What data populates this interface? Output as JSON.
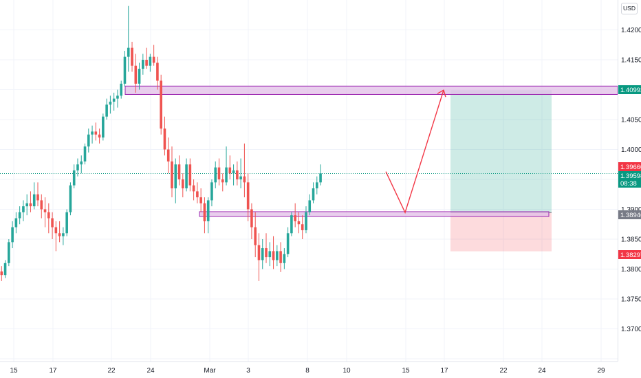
{
  "currency": "USD",
  "price_scale": {
    "ticks": [
      "1.42000",
      "1.41500",
      "1.41000",
      "1.40500",
      "1.40000",
      "1.39500",
      "1.39000",
      "1.38500",
      "1.38000",
      "1.37500",
      "1.37000"
    ],
    "tags": [
      {
        "label": "1.40992",
        "color": "#089981"
      },
      {
        "label": "1.39660",
        "color": "#f23645"
      },
      {
        "label": "1.39598",
        "countdown": "08:38",
        "color": "#089981"
      },
      {
        "label": "1.38946",
        "color": "#787b86"
      },
      {
        "label": "1.38297",
        "color": "#f23645"
      }
    ]
  },
  "time_scale": {
    "labels": [
      "15",
      "17",
      "22",
      "24",
      "Mar",
      "3",
      "8",
      "10",
      "15",
      "17",
      "22",
      "24",
      "29"
    ]
  },
  "chart_data": {
    "type": "candlestick",
    "ylim": [
      1.365,
      1.425
    ],
    "last_price": 1.39598,
    "previous_close": 1.3966,
    "candles": [
      [
        1.3796,
        1.3805,
        1.378,
        1.379
      ],
      [
        1.379,
        1.3815,
        1.3785,
        1.381
      ],
      [
        1.381,
        1.385,
        1.3805,
        1.3845
      ],
      [
        1.3845,
        1.388,
        1.3835,
        1.387
      ],
      [
        1.387,
        1.3895,
        1.386,
        1.3885
      ],
      [
        1.3885,
        1.3905,
        1.3875,
        1.3895
      ],
      [
        1.3895,
        1.3915,
        1.388,
        1.3905
      ],
      [
        1.3905,
        1.3925,
        1.389,
        1.391
      ],
      [
        1.391,
        1.393,
        1.3895,
        1.3905
      ],
      [
        1.3905,
        1.3945,
        1.39,
        1.3925
      ],
      [
        1.3925,
        1.3945,
        1.3905,
        1.3915
      ],
      [
        1.3915,
        1.3925,
        1.3885,
        1.39
      ],
      [
        1.39,
        1.392,
        1.387,
        1.3895
      ],
      [
        1.3895,
        1.391,
        1.386,
        1.3885
      ],
      [
        1.3885,
        1.3895,
        1.385,
        1.387
      ],
      [
        1.387,
        1.388,
        1.383,
        1.386
      ],
      [
        1.386,
        1.388,
        1.3845,
        1.3855
      ],
      [
        1.3855,
        1.387,
        1.384,
        1.386
      ],
      [
        1.386,
        1.39,
        1.3855,
        1.3895
      ],
      [
        1.3895,
        1.3945,
        1.389,
        1.394
      ],
      [
        1.394,
        1.3975,
        1.3935,
        1.3965
      ],
      [
        1.3965,
        1.3985,
        1.3955,
        1.3975
      ],
      [
        1.3975,
        1.399,
        1.396,
        1.398
      ],
      [
        1.398,
        1.401,
        1.3975,
        1.4005
      ],
      [
        1.4005,
        1.4035,
        1.3995,
        1.4025
      ],
      [
        1.4025,
        1.404,
        1.401,
        1.403
      ],
      [
        1.403,
        1.4045,
        1.4015,
        1.4025
      ],
      [
        1.4025,
        1.4035,
        1.401,
        1.402
      ],
      [
        1.402,
        1.406,
        1.4015,
        1.4055
      ],
      [
        1.4055,
        1.4085,
        1.405,
        1.4075
      ],
      [
        1.4075,
        1.409,
        1.406,
        1.408
      ],
      [
        1.408,
        1.4095,
        1.4065,
        1.4085
      ],
      [
        1.4085,
        1.41,
        1.407,
        1.409
      ],
      [
        1.409,
        1.4115,
        1.4085,
        1.411
      ],
      [
        1.411,
        1.4165,
        1.4105,
        1.4155
      ],
      [
        1.4155,
        1.424,
        1.413,
        1.417
      ],
      [
        1.417,
        1.418,
        1.413,
        1.414
      ],
      [
        1.414,
        1.416,
        1.4095,
        1.411
      ],
      [
        1.411,
        1.4145,
        1.41,
        1.4135
      ],
      [
        1.4135,
        1.416,
        1.4125,
        1.415
      ],
      [
        1.415,
        1.417,
        1.4135,
        1.414
      ],
      [
        1.414,
        1.416,
        1.413,
        1.4155
      ],
      [
        1.4155,
        1.4175,
        1.414,
        1.4145
      ],
      [
        1.4145,
        1.4155,
        1.41,
        1.4115
      ],
      [
        1.4115,
        1.4125,
        1.4025,
        1.4035
      ],
      [
        1.4035,
        1.4055,
        1.399,
        1.4
      ],
      [
        1.4,
        1.402,
        1.396,
        1.398
      ],
      [
        1.398,
        1.4005,
        1.392,
        1.3935
      ],
      [
        1.3935,
        1.3985,
        1.391,
        1.3975
      ],
      [
        1.3975,
        1.399,
        1.394,
        1.395
      ],
      [
        1.395,
        1.396,
        1.392,
        1.3935
      ],
      [
        1.3935,
        1.3985,
        1.393,
        1.3975
      ],
      [
        1.3975,
        1.3985,
        1.393,
        1.394
      ],
      [
        1.394,
        1.395,
        1.3915,
        1.393
      ],
      [
        1.393,
        1.3945,
        1.391,
        1.392
      ],
      [
        1.392,
        1.3935,
        1.3895,
        1.391
      ],
      [
        1.391,
        1.392,
        1.386,
        1.388
      ],
      [
        1.388,
        1.392,
        1.386,
        1.3915
      ],
      [
        1.3915,
        1.395,
        1.3905,
        1.3945
      ],
      [
        1.3945,
        1.398,
        1.3935,
        1.397
      ],
      [
        1.397,
        1.3985,
        1.394,
        1.395
      ],
      [
        1.395,
        1.396,
        1.393,
        1.3945
      ],
      [
        1.3945,
        1.4005,
        1.394,
        1.397
      ],
      [
        1.397,
        1.399,
        1.395,
        1.396
      ],
      [
        1.396,
        1.3975,
        1.394,
        1.3965
      ],
      [
        1.3965,
        1.398,
        1.394,
        1.395
      ],
      [
        1.395,
        1.3985,
        1.3935,
        1.3955
      ],
      [
        1.3955,
        1.401,
        1.392,
        1.3945
      ],
      [
        1.3945,
        1.396,
        1.388,
        1.39
      ],
      [
        1.39,
        1.391,
        1.385,
        1.387
      ],
      [
        1.387,
        1.3895,
        1.382,
        1.384
      ],
      [
        1.384,
        1.386,
        1.378,
        1.3815
      ],
      [
        1.3815,
        1.385,
        1.38,
        1.3835
      ],
      [
        1.3835,
        1.386,
        1.381,
        1.382
      ],
      [
        1.382,
        1.3845,
        1.3805,
        1.383
      ],
      [
        1.383,
        1.3855,
        1.38,
        1.3815
      ],
      [
        1.3815,
        1.384,
        1.3805,
        1.383
      ],
      [
        1.383,
        1.3845,
        1.3795,
        1.381
      ],
      [
        1.381,
        1.3835,
        1.38,
        1.3825
      ],
      [
        1.3825,
        1.387,
        1.382,
        1.386
      ],
      [
        1.386,
        1.3895,
        1.3855,
        1.389
      ],
      [
        1.389,
        1.391,
        1.387,
        1.388
      ],
      [
        1.388,
        1.3895,
        1.386,
        1.3875
      ],
      [
        1.3875,
        1.389,
        1.385,
        1.3865
      ],
      [
        1.3865,
        1.3905,
        1.386,
        1.3895
      ],
      [
        1.3895,
        1.3925,
        1.389,
        1.3915
      ],
      [
        1.3915,
        1.3945,
        1.391,
        1.3935
      ],
      [
        1.3935,
        1.3955,
        1.3925,
        1.3945
      ],
      [
        1.3945,
        1.3975,
        1.394,
        1.396
      ]
    ],
    "drawings": {
      "resistance_zone": [
        1.4092,
        1.4106
      ],
      "support_zone": [
        1.3888,
        1.3896
      ],
      "projected_path": [
        1.3963,
        1.38946,
        1.40992
      ],
      "position": {
        "entry": 1.38946,
        "target": 1.40992,
        "stop": 1.38297
      },
      "marker_line": 1.39598
    }
  }
}
